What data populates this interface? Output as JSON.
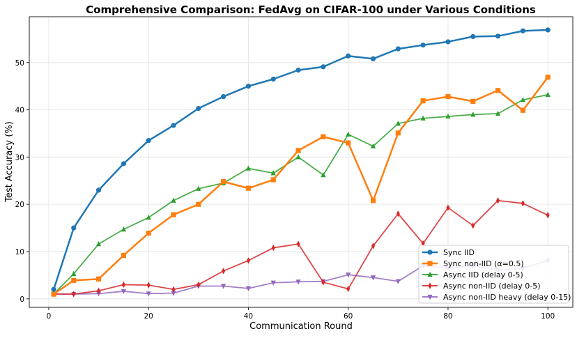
{
  "chart_data": {
    "type": "line",
    "title": "Comprehensive Comparison: FedAvg on CIFAR-100 under Various Conditions",
    "xlabel": "Communication Round",
    "ylabel": "Test Accuracy (%)",
    "xlim": [
      -3.9,
      105
    ],
    "ylim": [
      -1.8,
      59.7
    ],
    "xticks": [
      0,
      20,
      40,
      60,
      80,
      100
    ],
    "yticks": [
      0,
      10,
      20,
      30,
      40,
      50
    ],
    "grid": true,
    "legend_position": "lower-right",
    "x": [
      1,
      5,
      10,
      15,
      20,
      25,
      30,
      35,
      40,
      45,
      50,
      55,
      60,
      65,
      70,
      75,
      80,
      85,
      90,
      95,
      100
    ],
    "series": [
      {
        "name": "Sync IID",
        "color": "#1f77b4",
        "marker": "circle",
        "width": 2.5,
        "values": [
          2.0,
          15.0,
          23.0,
          28.6,
          33.5,
          36.7,
          40.3,
          42.8,
          45.0,
          46.5,
          48.4,
          49.1,
          51.4,
          50.8,
          52.9,
          53.7,
          54.4,
          55.5,
          55.6,
          56.7,
          56.9
        ]
      },
      {
        "name": "Sync non-IID (α=0.5)",
        "color": "#ff7f0e",
        "marker": "square",
        "width": 2.5,
        "values": [
          1.0,
          3.9,
          4.2,
          9.2,
          13.9,
          17.8,
          20.0,
          24.8,
          23.4,
          25.2,
          31.4,
          34.3,
          33.0,
          20.8,
          35.1,
          41.9,
          42.8,
          41.8,
          44.1,
          39.9,
          46.9
        ]
      },
      {
        "name": "Async IID (delay 0-5)",
        "color": "#2ca02c",
        "marker": "triangle-up",
        "width": 1.8,
        "values": [
          1.0,
          5.3,
          11.6,
          14.7,
          17.2,
          20.8,
          23.3,
          24.5,
          27.6,
          26.6,
          30.0,
          26.2,
          34.8,
          32.3,
          37.1,
          38.2,
          38.6,
          39.0,
          39.2,
          42.1,
          43.2
        ]
      },
      {
        "name": "Async non-IID (delay 0-5)",
        "color": "#d62728",
        "marker": "diamond",
        "width": 1.8,
        "values": [
          1.0,
          1.0,
          1.7,
          3.0,
          2.9,
          2.0,
          3.0,
          5.9,
          8.1,
          10.8,
          11.6,
          3.5,
          2.1,
          11.2,
          18.0,
          11.7,
          19.3,
          15.5,
          20.8,
          20.2,
          17.7
        ]
      },
      {
        "name": "Async non-IID heavy (delay 0-15)",
        "color": "#9467bd",
        "marker": "triangle-down",
        "width": 1.8,
        "values": [
          1.0,
          1.0,
          1.1,
          1.6,
          1.1,
          1.2,
          2.7,
          2.7,
          2.2,
          3.4,
          3.6,
          3.7,
          5.1,
          4.5,
          3.7,
          7.0,
          6.5,
          7.0,
          6.1,
          6.5,
          8.1
        ]
      }
    ]
  }
}
